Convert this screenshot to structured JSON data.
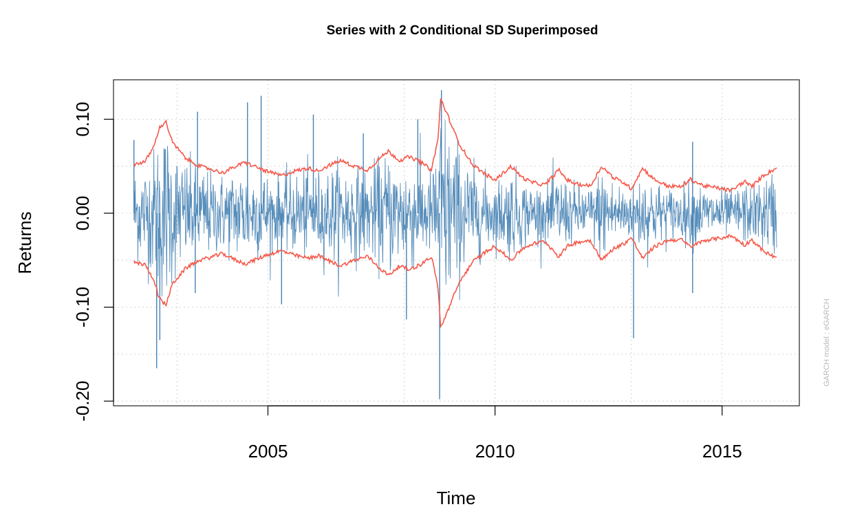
{
  "chart_data": {
    "type": "line",
    "title": "Series with 2 Conditional SD Superimposed",
    "xlabel": "Time",
    "ylabel": "Returns",
    "side_note": "GARCH model :  eGARCH",
    "xlim": [
      2001.6,
      2016.7
    ],
    "ylim": [
      -0.205,
      0.142
    ],
    "x_ticks": [
      2005,
      2010,
      2015
    ],
    "x_tick_labels": [
      "2005",
      "2010",
      "2015"
    ],
    "y_ticks": [
      -0.2,
      -0.1,
      0.0,
      0.1
    ],
    "y_tick_labels": [
      "-0.20",
      "-0.10",
      "0.00",
      "0.10"
    ],
    "grid": true,
    "grid_x": [
      2003,
      2005,
      2008,
      2010,
      2013,
      2015
    ],
    "grid_y": [
      -0.2,
      -0.15,
      -0.1,
      -0.05,
      0.0,
      0.05,
      0.1
    ],
    "colors": {
      "returns": "#4682b4",
      "band": "#f5584a",
      "grid": "#d3d3d3",
      "axes": "#000000"
    },
    "band_points": {
      "x": [
        2002.05,
        2002.3,
        2002.5,
        2002.6,
        2002.75,
        2002.9,
        2003.2,
        2003.5,
        2003.8,
        2004.0,
        2004.3,
        2004.5,
        2004.8,
        2005.0,
        2005.3,
        2005.6,
        2005.9,
        2006.1,
        2006.4,
        2006.6,
        2006.9,
        2007.2,
        2007.45,
        2007.65,
        2007.9,
        2008.1,
        2008.35,
        2008.6,
        2008.75,
        2008.8,
        2008.95,
        2009.2,
        2009.5,
        2009.8,
        2010.0,
        2010.35,
        2010.6,
        2010.8,
        2011.1,
        2011.4,
        2011.6,
        2011.8,
        2012.1,
        2012.35,
        2012.6,
        2012.85,
        2013.0,
        2013.25,
        2013.5,
        2013.8,
        2014.1,
        2014.3,
        2014.6,
        2014.9,
        2015.2,
        2015.5,
        2015.65,
        2015.9,
        2016.2
      ],
      "sd2": [
        0.052,
        0.055,
        0.072,
        0.09,
        0.098,
        0.075,
        0.058,
        0.05,
        0.046,
        0.043,
        0.05,
        0.054,
        0.048,
        0.044,
        0.04,
        0.045,
        0.048,
        0.045,
        0.052,
        0.056,
        0.05,
        0.046,
        0.058,
        0.066,
        0.056,
        0.06,
        0.055,
        0.046,
        0.08,
        0.122,
        0.105,
        0.075,
        0.052,
        0.041,
        0.035,
        0.05,
        0.038,
        0.033,
        0.03,
        0.046,
        0.035,
        0.031,
        0.029,
        0.05,
        0.038,
        0.032,
        0.026,
        0.048,
        0.036,
        0.029,
        0.028,
        0.036,
        0.029,
        0.027,
        0.024,
        0.034,
        0.028,
        0.04,
        0.048
      ]
    },
    "return_spikes": [
      {
        "x": 2002.05,
        "y": 0.078
      },
      {
        "x": 2002.55,
        "y": -0.165
      },
      {
        "x": 2002.62,
        "y": -0.135
      },
      {
        "x": 2003.45,
        "y": 0.108
      },
      {
        "x": 2003.4,
        "y": -0.085
      },
      {
        "x": 2004.55,
        "y": 0.118
      },
      {
        "x": 2004.85,
        "y": 0.125
      },
      {
        "x": 2005.3,
        "y": -0.097
      },
      {
        "x": 2006.0,
        "y": 0.105
      },
      {
        "x": 2007.1,
        "y": 0.085
      },
      {
        "x": 2008.05,
        "y": -0.113
      },
      {
        "x": 2008.3,
        "y": 0.1
      },
      {
        "x": 2008.78,
        "y": -0.198
      },
      {
        "x": 2008.82,
        "y": 0.131
      },
      {
        "x": 2013.05,
        "y": -0.133
      },
      {
        "x": 2014.35,
        "y": -0.085
      },
      {
        "x": 2014.35,
        "y": 0.076
      }
    ]
  }
}
